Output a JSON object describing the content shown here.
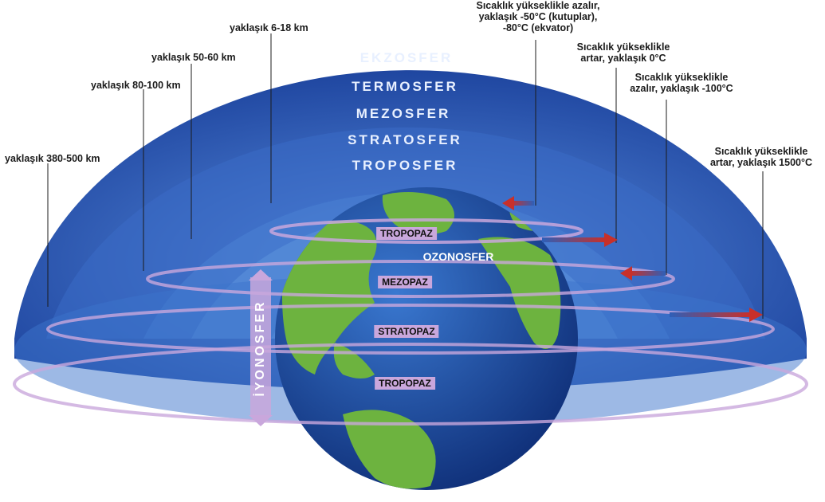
{
  "layers": {
    "ekzosfer": "EKZOSFER",
    "termosfer": "TERMOSFER",
    "mezosfer": "MEZOSFER",
    "stratosfer": "STRATOSFER",
    "troposfer": "TROPOSFER"
  },
  "heights": {
    "troposfer": "yaklaşık 6-18 km",
    "stratosfer": "yaklaşık 50-60 km",
    "mezosfer": "yaklaşık 80-100 km",
    "termosfer": "yaklaşık 380-500 km"
  },
  "temperatures": {
    "troposfer": [
      "Sıcaklık yükseklikle azalır,",
      "yaklaşık -50°C (kutuplar),",
      "-80°C (ekvator)"
    ],
    "stratosfer": [
      "Sıcaklık yükseklikle",
      "artar, yaklaşık 0°C"
    ],
    "mezosfer": [
      "Sıcaklık yükseklikle",
      "azalır, yaklaşık -100°C"
    ],
    "termosfer": [
      "Sıcaklık yükseklikle",
      "artar, yaklaşık 1500°C"
    ]
  },
  "boundaries": {
    "tropopoz_top": "TROPOPAZ",
    "mezopoz": "MEZOPAZ",
    "stratopoz": "STRATOPAZ",
    "tropopoz_bottom": "TROPOPAZ"
  },
  "ozonosfer": "OZONOSFER",
  "iyonosfer": "İYONOSFER",
  "colors": {
    "dome_outer": "#2a55b0",
    "dome_inner": "#4a86d6",
    "ocean": "#1e4fa3",
    "land": "#6db33f",
    "boundary": "#c9a7dc",
    "arrow_red": "#c8302a",
    "arrow_blue": "#2e5fb8"
  }
}
